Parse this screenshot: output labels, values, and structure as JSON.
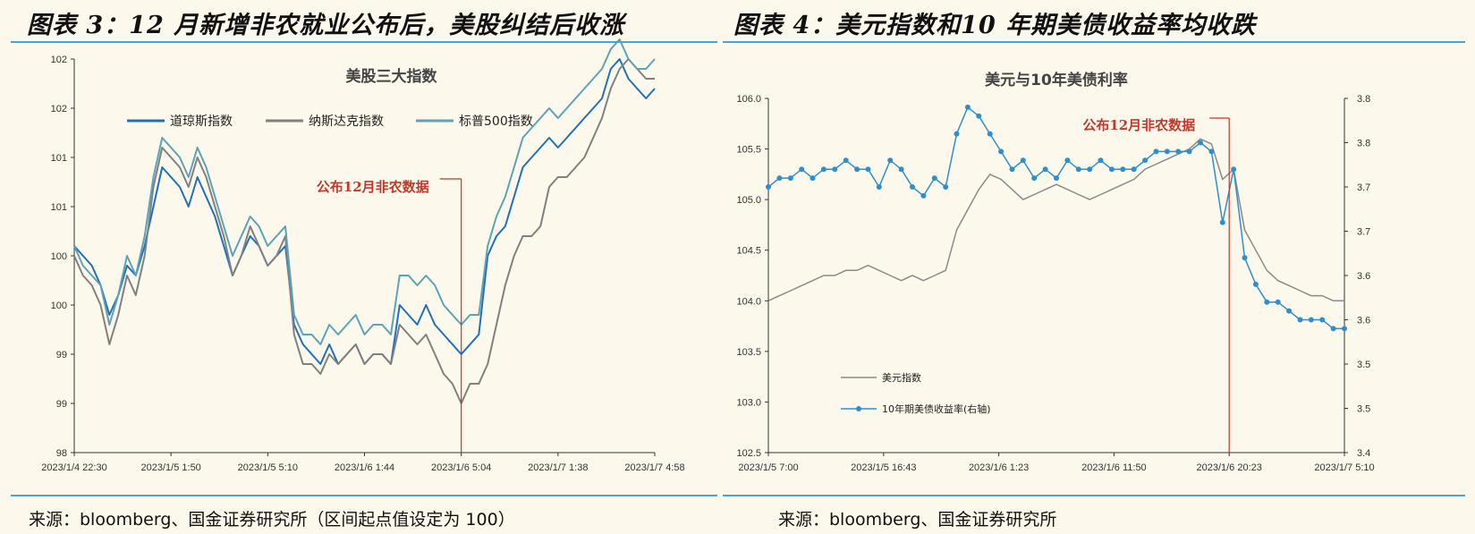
{
  "left_panel": {
    "title": "图表 3：12 月新增非农就业公布后，美股纠结后收涨",
    "source": "来源：bloomberg、国金证券研究所（区间起点值设定为 100）"
  },
  "right_panel": {
    "title": "图表 4：美元指数和10 年期美债收益率均收跌",
    "source": "来源：bloomberg、国金证券研究所"
  },
  "colors": {
    "rule": "#4aa3d8",
    "dow": "#1f6fbf",
    "nasdaq": "#808080",
    "sp500": "#5ba3b8",
    "dxy": "#8a8a8a",
    "yield": "#2e8fce",
    "annotation": "#c0392b"
  },
  "chart_data": [
    {
      "type": "line",
      "title": "美股三大指数",
      "y_tick_labels": [
        "98",
        "99",
        "99",
        "100",
        "100",
        "101",
        "101",
        "102",
        "102"
      ],
      "ylim": [
        98,
        102
      ],
      "x_tick_labels": [
        "2023/1/4 22:30",
        "2023/1/5 1:50",
        "2023/1/5 5:10",
        "2023/1/6 1:44",
        "2023/1/6 5:04",
        "2023/1/7 1:38",
        "2023/1/7 4:58"
      ],
      "annotation": "公布12月非农数据",
      "annotation_x_index": 4,
      "legend_position": "top",
      "series": [
        {
          "name": "道琼斯指数",
          "values": [
            100.1,
            100.0,
            99.9,
            99.7,
            99.4,
            99.6,
            99.9,
            99.8,
            100.1,
            100.5,
            100.9,
            100.8,
            100.7,
            100.5,
            100.8,
            100.6,
            100.4,
            100.1,
            99.8,
            100.0,
            100.2,
            100.1,
            99.9,
            100.0,
            100.1,
            99.3,
            99.1,
            99.0,
            98.9,
            99.1,
            98.9,
            99.0,
            99.1,
            98.9,
            99.0,
            99.0,
            98.9,
            99.5,
            99.4,
            99.3,
            99.5,
            99.3,
            99.2,
            99.1,
            99.0,
            99.1,
            99.2,
            100.0,
            100.2,
            100.3,
            100.6,
            100.9,
            101.0,
            101.1,
            101.2,
            101.1,
            101.2,
            101.3,
            101.4,
            101.5,
            101.6,
            101.9,
            102.0,
            101.8,
            101.7,
            101.6,
            101.7
          ]
        },
        {
          "name": "纳斯达克指数",
          "values": [
            100.0,
            99.8,
            99.7,
            99.5,
            99.1,
            99.4,
            99.8,
            99.6,
            100.0,
            100.7,
            101.1,
            101.0,
            100.9,
            100.7,
            101.0,
            100.8,
            100.5,
            100.2,
            99.8,
            100.0,
            100.3,
            100.1,
            99.9,
            100.0,
            100.2,
            99.2,
            98.9,
            98.9,
            98.8,
            99.0,
            98.9,
            99.0,
            99.1,
            98.9,
            99.0,
            99.0,
            98.9,
            99.3,
            99.2,
            99.1,
            99.2,
            99.0,
            98.8,
            98.7,
            98.5,
            98.7,
            98.7,
            98.9,
            99.3,
            99.7,
            100.0,
            100.2,
            100.2,
            100.3,
            100.7,
            100.8,
            100.8,
            100.9,
            101.0,
            101.2,
            101.4,
            101.7,
            101.9,
            102.0,
            101.9,
            101.8,
            101.8
          ]
        },
        {
          "name": "标普500指数",
          "values": [
            100.1,
            99.9,
            99.8,
            99.7,
            99.3,
            99.6,
            100.0,
            99.8,
            100.2,
            100.8,
            101.2,
            101.1,
            101.0,
            100.8,
            101.1,
            100.9,
            100.6,
            100.3,
            100.0,
            100.2,
            100.4,
            100.3,
            100.1,
            100.2,
            100.3,
            99.4,
            99.2,
            99.2,
            99.1,
            99.3,
            99.2,
            99.3,
            99.4,
            99.2,
            99.3,
            99.3,
            99.2,
            99.8,
            99.8,
            99.7,
            99.8,
            99.7,
            99.5,
            99.4,
            99.3,
            99.4,
            99.4,
            100.1,
            100.4,
            100.6,
            100.9,
            101.2,
            101.3,
            101.4,
            101.5,
            101.4,
            101.5,
            101.6,
            101.7,
            101.8,
            101.9,
            102.1,
            102.2,
            102.0,
            101.9,
            101.9,
            102.0
          ]
        }
      ]
    },
    {
      "type": "line",
      "title": "美元与10年美债利率",
      "y_tick_labels": [
        "102.5",
        "103.0",
        "103.5",
        "104.0",
        "104.5",
        "105.0",
        "105.5",
        "106.0"
      ],
      "ylim": [
        102.5,
        106.0
      ],
      "y2_tick_labels": [
        "3.4",
        "3.5",
        "3.5",
        "3.6",
        "3.6",
        "3.7",
        "3.7",
        "3.8",
        "3.8"
      ],
      "y2lim": [
        3.4,
        3.8
      ],
      "x_tick_labels": [
        "2023/1/5 7:00",
        "2023/1/5 16:43",
        "2023/1/6 1:23",
        "2023/1/6 11:50",
        "2023/1/6 20:23",
        "2023/1/7 5:10"
      ],
      "annotation": "公布12月非农数据",
      "annotation_x_index": 4,
      "legend_position": "bottom-left",
      "series": [
        {
          "name": "美元指数",
          "axis": "left",
          "values": [
            104.0,
            104.05,
            104.1,
            104.15,
            104.2,
            104.25,
            104.25,
            104.3,
            104.3,
            104.35,
            104.3,
            104.25,
            104.2,
            104.25,
            104.2,
            104.25,
            104.3,
            104.7,
            104.9,
            105.1,
            105.25,
            105.2,
            105.1,
            105.0,
            105.05,
            105.1,
            105.15,
            105.1,
            105.05,
            105.0,
            105.05,
            105.1,
            105.15,
            105.2,
            105.3,
            105.35,
            105.4,
            105.45,
            105.5,
            105.6,
            105.55,
            105.2,
            105.3,
            104.7,
            104.5,
            104.3,
            104.2,
            104.15,
            104.1,
            104.05,
            104.05,
            104.0,
            104.0
          ]
        },
        {
          "name": "10年期美债收益率(右轴)",
          "axis": "right",
          "values": [
            3.7,
            3.71,
            3.71,
            3.72,
            3.71,
            3.72,
            3.72,
            3.73,
            3.72,
            3.72,
            3.7,
            3.73,
            3.72,
            3.7,
            3.69,
            3.71,
            3.7,
            3.76,
            3.79,
            3.78,
            3.76,
            3.74,
            3.72,
            3.73,
            3.71,
            3.72,
            3.71,
            3.73,
            3.72,
            3.72,
            3.73,
            3.72,
            3.72,
            3.72,
            3.73,
            3.74,
            3.74,
            3.74,
            3.74,
            3.75,
            3.74,
            3.66,
            3.72,
            3.62,
            3.59,
            3.57,
            3.57,
            3.56,
            3.55,
            3.55,
            3.55,
            3.54,
            3.54
          ]
        }
      ]
    }
  ]
}
